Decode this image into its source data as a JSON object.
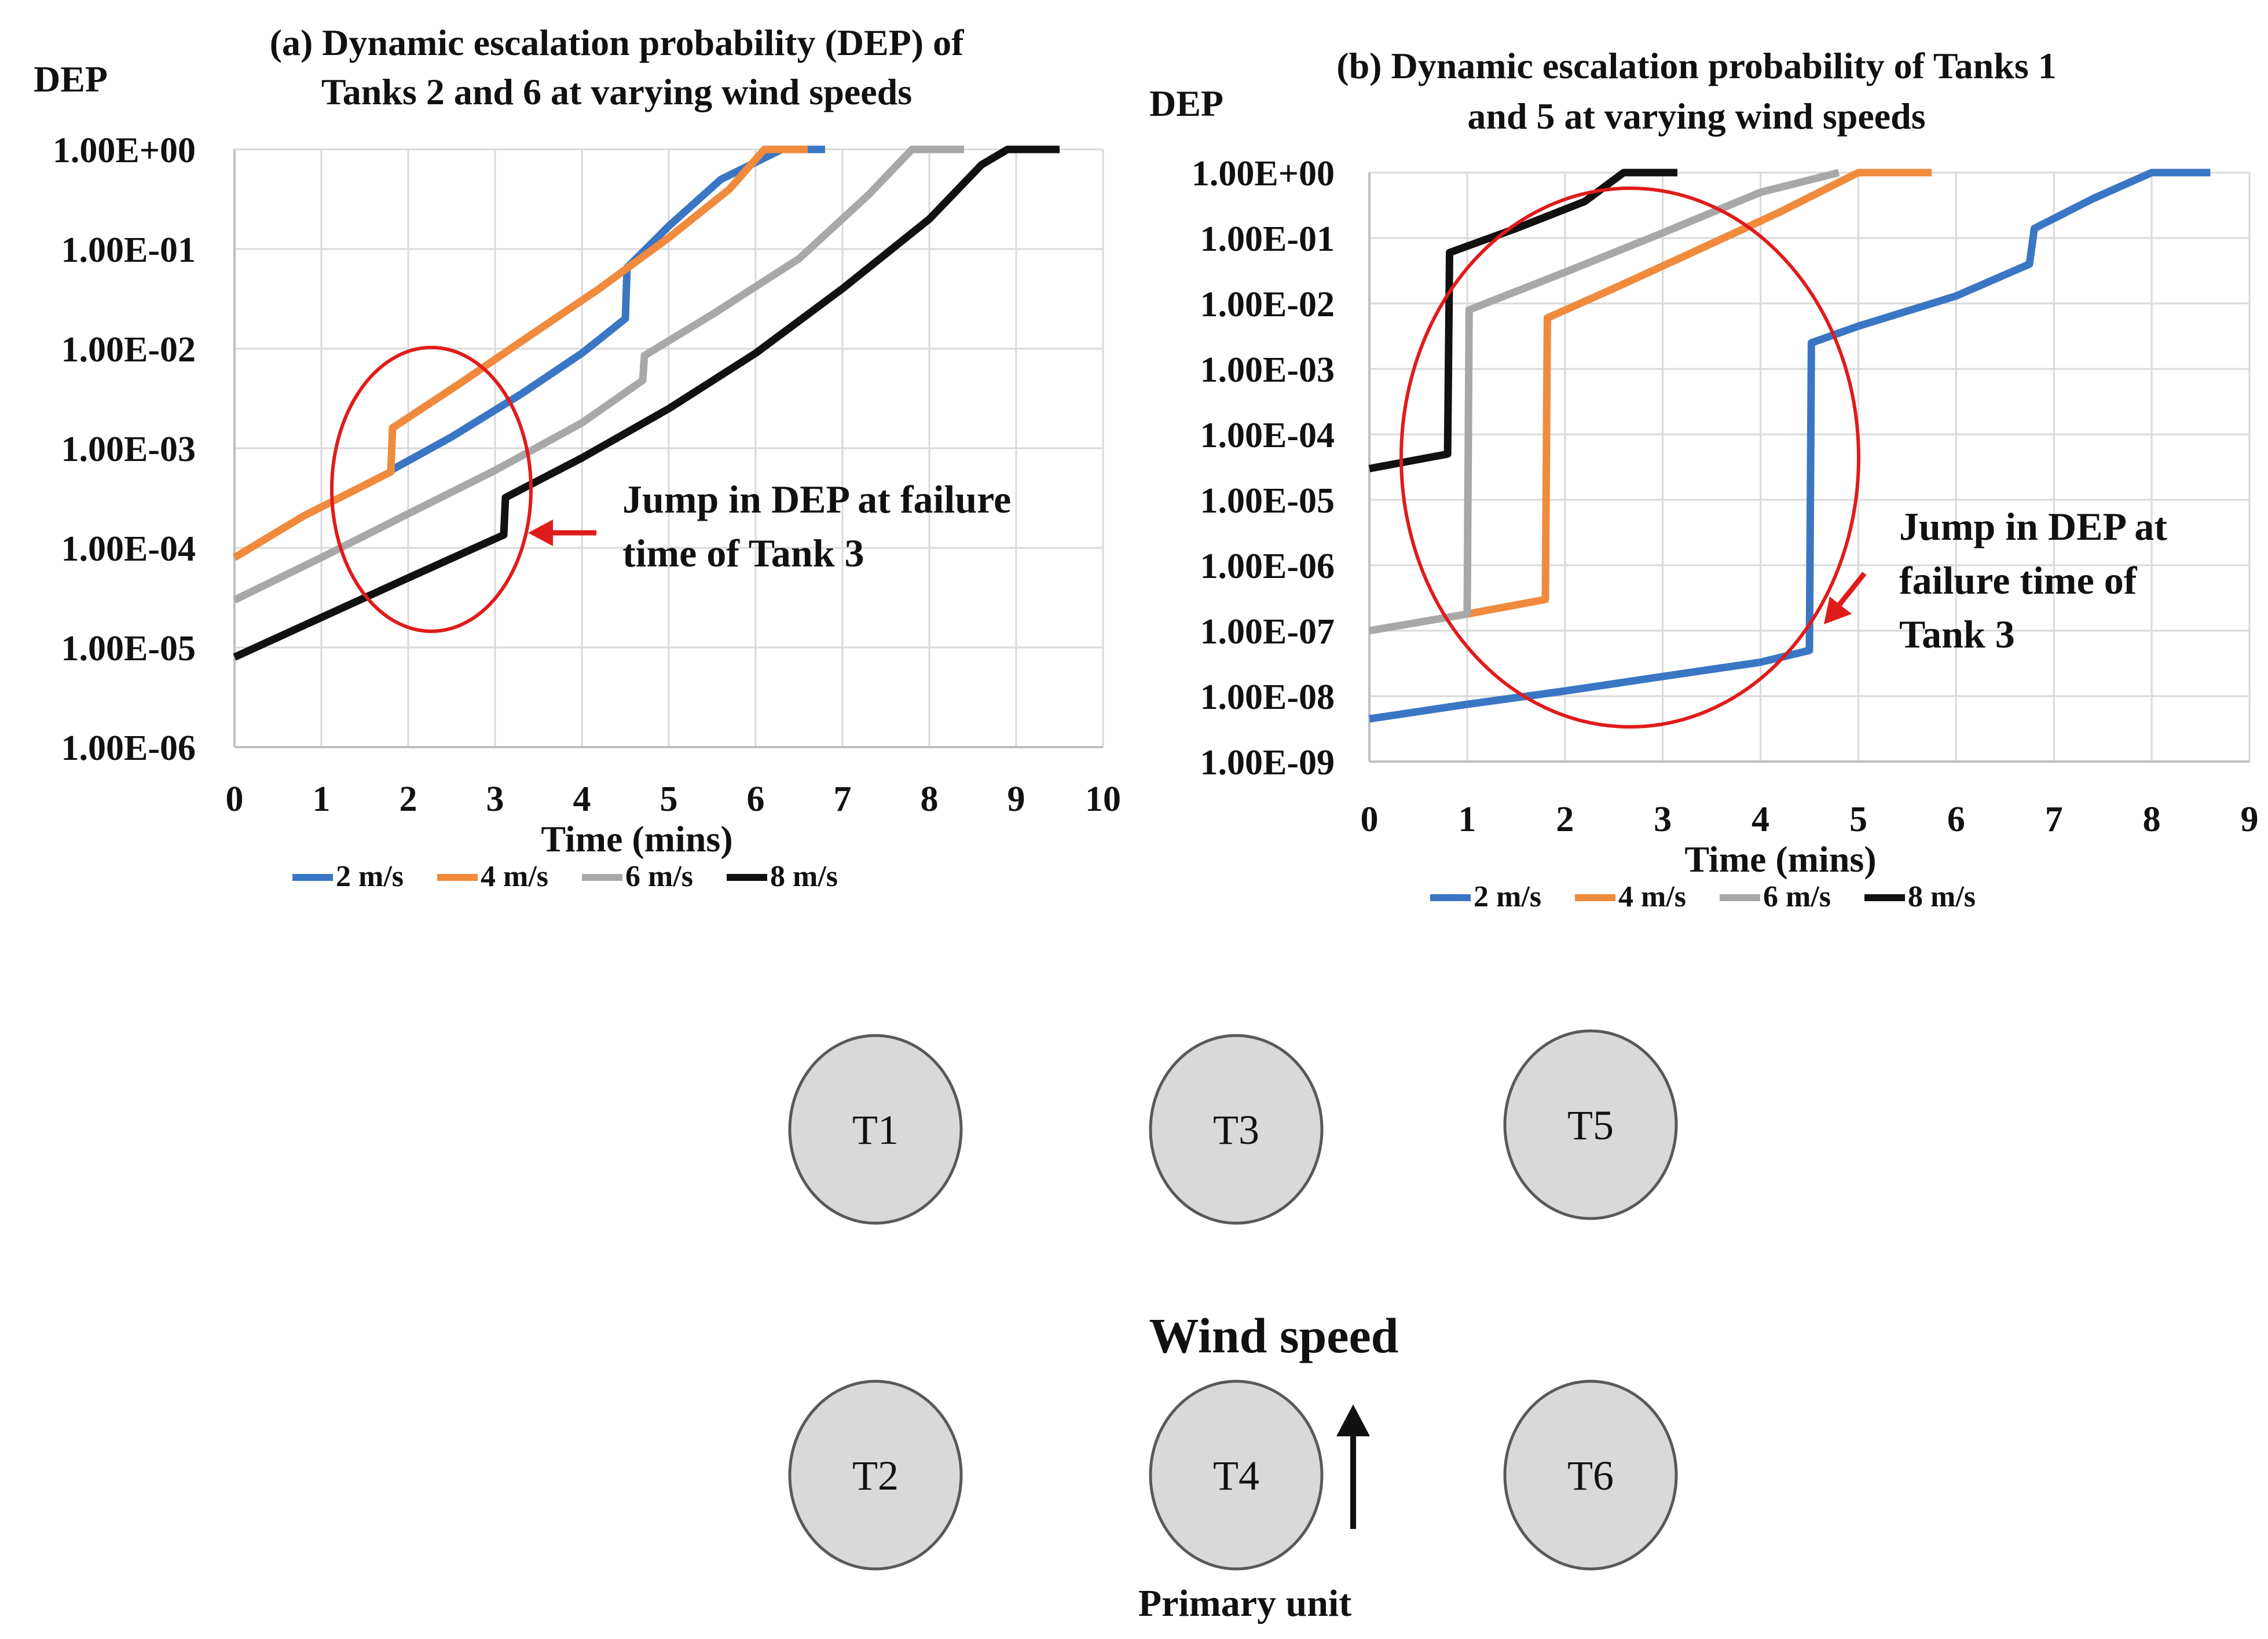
{
  "chart_data": [
    {
      "id": "a",
      "type": "line",
      "title_lines": [
        "(a) Dynamic escalation probability (DEP) of",
        "Tanks 2 and 6 at varying wind speeds"
      ],
      "ylabel": "DEP",
      "xlabel": "Time (mins)",
      "yscale": "log",
      "ylim": [
        1e-06,
        1
      ],
      "xlim": [
        0,
        10
      ],
      "xticks": [
        "0",
        "1",
        "2",
        "3",
        "4",
        "5",
        "6",
        "7",
        "8",
        "9",
        "10"
      ],
      "yticks": [
        "1.00E-06",
        "1.00E-05",
        "1.00E-04",
        "1.00E-03",
        "1.00E-02",
        "1.00E-01",
        "1.00E+00"
      ],
      "grid": true,
      "legend_position": "bottom",
      "series": [
        {
          "name": "2 m/s",
          "color": "#3a76c4",
          "x": [
            1.8,
            2.5,
            3.3,
            4.0,
            4.5,
            4.52,
            5.0,
            5.6,
            6.3,
            6.8
          ],
          "y": [
            0.0006,
            0.0013,
            0.0035,
            0.009,
            0.02,
            0.065,
            0.17,
            0.5,
            1.0,
            1.0
          ]
        },
        {
          "name": "4 m/s",
          "color": "#f08a3c",
          "x": [
            0,
            0.8,
            1.8,
            1.82,
            2.6,
            3.4,
            4.2,
            5.0,
            5.7,
            6.1,
            6.6
          ],
          "y": [
            8e-05,
            0.00021,
            0.00058,
            0.0016,
            0.0045,
            0.0135,
            0.04,
            0.13,
            0.4,
            1.0,
            1.0
          ]
        },
        {
          "name": "6 m/s",
          "color": "#a8a8a8",
          "x": [
            0,
            1.0,
            2.0,
            3.0,
            4.0,
            4.7,
            4.72,
            5.5,
            6.5,
            7.3,
            7.8,
            8.4
          ],
          "y": [
            3e-05,
            8e-05,
            0.00022,
            0.0006,
            0.0018,
            0.0048,
            0.0085,
            0.022,
            0.08,
            0.35,
            1.0,
            1.0
          ]
        },
        {
          "name": "8 m/s",
          "color": "#111111",
          "x": [
            0,
            1.0,
            2.0,
            3.1,
            3.12,
            4.0,
            5.0,
            6.0,
            7.0,
            8.0,
            8.6,
            8.9,
            9.5
          ],
          "y": [
            8e-06,
            2e-05,
            5e-05,
            0.000135,
            0.00032,
            0.0008,
            0.0025,
            0.009,
            0.04,
            0.2,
            0.7,
            1.0,
            1.0
          ]
        }
      ],
      "annotation": {
        "lines": [
          "Jump in DEP at failure",
          "time of Tank 3"
        ]
      }
    },
    {
      "id": "b",
      "type": "line",
      "title_lines": [
        "(b) Dynamic escalation probability of Tanks 1",
        "and 5 at varying wind speeds"
      ],
      "ylabel": "DEP",
      "xlabel": "Time (mins)",
      "yscale": "log",
      "ylim": [
        1e-09,
        1
      ],
      "xlim": [
        0,
        9
      ],
      "xticks": [
        "0",
        "1",
        "2",
        "3",
        "4",
        "5",
        "6",
        "7",
        "8",
        "9"
      ],
      "yticks": [
        "1.00E-09",
        "1.00E-08",
        "1.00E-07",
        "1.00E-06",
        "1.00E-05",
        "1.00E-04",
        "1.00E-03",
        "1.00E-02",
        "1.00E-01",
        "1.00E+00"
      ],
      "grid": true,
      "legend_position": "bottom",
      "series": [
        {
          "name": "2 m/s",
          "color": "#3a76c4",
          "x": [
            0,
            1.0,
            2.0,
            3.0,
            4.0,
            4.5,
            4.52,
            5.0,
            6.0,
            6.75,
            6.8,
            7.4,
            8.0,
            8.6
          ],
          "y": [
            4.5e-09,
            7.5e-09,
            1.2e-08,
            2e-08,
            3.3e-08,
            5e-08,
            0.0025,
            0.0045,
            0.013,
            0.04,
            0.14,
            0.4,
            1.0,
            1.0
          ]
        },
        {
          "name": "4 m/s",
          "color": "#f08a3c",
          "x": [
            1.0,
            1.8,
            1.82,
            2.5,
            3.3,
            4.2,
            5.0,
            5.75
          ],
          "y": [
            1.8e-07,
            3e-07,
            0.006,
            0.017,
            0.06,
            0.25,
            1.0,
            1.0
          ]
        },
        {
          "name": "6 m/s",
          "color": "#a8a8a8",
          "x": [
            0,
            1.0,
            1.02,
            2.0,
            3.0,
            4.0,
            4.8
          ],
          "y": [
            1e-07,
            1.8e-07,
            0.008,
            0.03,
            0.12,
            0.5,
            1.0
          ]
        },
        {
          "name": "8 m/s",
          "color": "#111111",
          "x": [
            0,
            0.8,
            0.82,
            1.5,
            2.2,
            2.6,
            3.15
          ],
          "y": [
            3e-05,
            5e-05,
            0.06,
            0.14,
            0.36,
            1.0,
            1.0
          ]
        }
      ],
      "annotation": {
        "lines": [
          "Jump in DEP at",
          "failure time of",
          "Tank 3"
        ]
      }
    }
  ],
  "layout_diagram": {
    "tanks": [
      "T1",
      "T3",
      "T5",
      "T2",
      "T4",
      "T6"
    ],
    "wind_label": "Wind speed",
    "primary_label": "Primary unit"
  }
}
